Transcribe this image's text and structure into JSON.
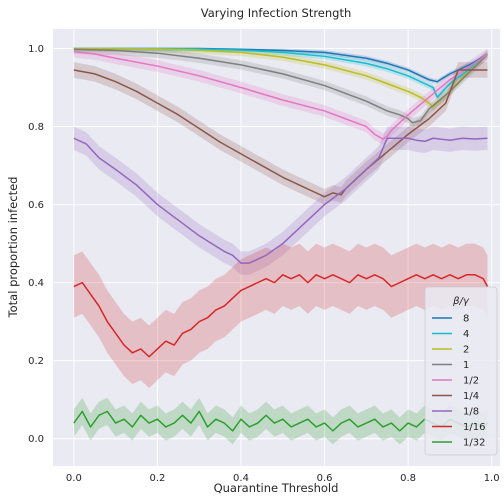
{
  "chart_data": {
    "type": "line",
    "title": "Varying Infection Strength",
    "xlabel": "Quarantine Threshold",
    "ylabel": "Total proportion infected",
    "xlim": [
      -0.05,
      1.02
    ],
    "ylim": [
      -0.07,
      1.05
    ],
    "xticks": [
      "0.0",
      "0.2",
      "0.4",
      "0.6",
      "0.8",
      "1.0"
    ],
    "yticks": [
      "0.0",
      "0.2",
      "0.4",
      "0.6",
      "0.8",
      "1.0"
    ],
    "grid": true,
    "legend": {
      "title": "β/γ",
      "placement": "bottom-right"
    },
    "series": [
      {
        "name": "8",
        "color": "#1f77b4",
        "points": [
          [
            0,
            1.0
          ],
          [
            0.1,
            1.0
          ],
          [
            0.2,
            1.0
          ],
          [
            0.3,
            1.0
          ],
          [
            0.4,
            0.998
          ],
          [
            0.5,
            0.995
          ],
          [
            0.6,
            0.99
          ],
          [
            0.7,
            0.975
          ],
          [
            0.75,
            0.962
          ],
          [
            0.8,
            0.945
          ],
          [
            0.83,
            0.93
          ],
          [
            0.85,
            0.92
          ],
          [
            0.87,
            0.915
          ],
          [
            0.88,
            0.922
          ],
          [
            0.9,
            0.935
          ],
          [
            0.95,
            0.96
          ],
          [
            0.99,
            0.985
          ]
        ],
        "band": 0.006
      },
      {
        "name": "4",
        "color": "#17becf",
        "points": [
          [
            0,
            1.0
          ],
          [
            0.1,
            1.0
          ],
          [
            0.2,
            1.0
          ],
          [
            0.3,
            0.999
          ],
          [
            0.4,
            0.996
          ],
          [
            0.5,
            0.99
          ],
          [
            0.6,
            0.98
          ],
          [
            0.7,
            0.962
          ],
          [
            0.75,
            0.948
          ],
          [
            0.8,
            0.93
          ],
          [
            0.84,
            0.91
          ],
          [
            0.86,
            0.9
          ],
          [
            0.87,
            0.875
          ],
          [
            0.9,
            0.91
          ],
          [
            0.95,
            0.95
          ],
          [
            0.99,
            0.985
          ]
        ],
        "band": 0.008
      },
      {
        "name": "2",
        "color": "#bcbd22",
        "points": [
          [
            0,
            1.0
          ],
          [
            0.1,
            1.0
          ],
          [
            0.2,
            0.999
          ],
          [
            0.3,
            0.996
          ],
          [
            0.4,
            0.99
          ],
          [
            0.5,
            0.978
          ],
          [
            0.6,
            0.958
          ],
          [
            0.7,
            0.93
          ],
          [
            0.75,
            0.91
          ],
          [
            0.8,
            0.89
          ],
          [
            0.83,
            0.875
          ],
          [
            0.85,
            0.86
          ],
          [
            0.86,
            0.85
          ],
          [
            0.89,
            0.88
          ],
          [
            0.93,
            0.925
          ],
          [
            0.99,
            0.985
          ]
        ],
        "band": 0.01
      },
      {
        "name": "1",
        "color": "#7f7f7f",
        "points": [
          [
            0,
            0.998
          ],
          [
            0.1,
            0.995
          ],
          [
            0.2,
            0.988
          ],
          [
            0.3,
            0.975
          ],
          [
            0.4,
            0.958
          ],
          [
            0.5,
            0.935
          ],
          [
            0.6,
            0.905
          ],
          [
            0.7,
            0.865
          ],
          [
            0.75,
            0.84
          ],
          [
            0.78,
            0.83
          ],
          [
            0.8,
            0.82
          ],
          [
            0.81,
            0.81
          ],
          [
            0.83,
            0.815
          ],
          [
            0.85,
            0.845
          ],
          [
            0.9,
            0.89
          ],
          [
            0.99,
            0.985
          ]
        ],
        "band": 0.012
      },
      {
        "name": "1/2",
        "color": "#e377c2",
        "points": [
          [
            0,
            0.992
          ],
          [
            0.05,
            0.986
          ],
          [
            0.1,
            0.975
          ],
          [
            0.2,
            0.955
          ],
          [
            0.3,
            0.93
          ],
          [
            0.4,
            0.9
          ],
          [
            0.5,
            0.868
          ],
          [
            0.6,
            0.84
          ],
          [
            0.65,
            0.82
          ],
          [
            0.7,
            0.8
          ],
          [
            0.72,
            0.78
          ],
          [
            0.74,
            0.768
          ],
          [
            0.75,
            0.775
          ],
          [
            0.76,
            0.79
          ],
          [
            0.8,
            0.83
          ],
          [
            0.85,
            0.875
          ],
          [
            0.9,
            0.92
          ],
          [
            0.99,
            0.985
          ]
        ],
        "band": 0.015
      },
      {
        "name": "1/4",
        "color": "#8c564b",
        "points": [
          [
            0,
            0.945
          ],
          [
            0.05,
            0.935
          ],
          [
            0.1,
            0.915
          ],
          [
            0.15,
            0.89
          ],
          [
            0.2,
            0.86
          ],
          [
            0.25,
            0.83
          ],
          [
            0.3,
            0.795
          ],
          [
            0.35,
            0.76
          ],
          [
            0.4,
            0.73
          ],
          [
            0.45,
            0.7
          ],
          [
            0.5,
            0.67
          ],
          [
            0.55,
            0.645
          ],
          [
            0.58,
            0.63
          ],
          [
            0.6,
            0.62
          ],
          [
            0.62,
            0.63
          ],
          [
            0.64,
            0.625
          ],
          [
            0.65,
            0.64
          ],
          [
            0.7,
            0.69
          ],
          [
            0.75,
            0.735
          ],
          [
            0.8,
            0.78
          ],
          [
            0.85,
            0.82
          ],
          [
            0.89,
            0.86
          ],
          [
            0.92,
            0.945
          ],
          [
            0.99,
            0.945
          ]
        ],
        "band": 0.02
      },
      {
        "name": "1/8",
        "color": "#9467bd",
        "points": [
          [
            0,
            0.77
          ],
          [
            0.03,
            0.755
          ],
          [
            0.06,
            0.72
          ],
          [
            0.1,
            0.69
          ],
          [
            0.15,
            0.65
          ],
          [
            0.2,
            0.6
          ],
          [
            0.25,
            0.56
          ],
          [
            0.3,
            0.52
          ],
          [
            0.33,
            0.5
          ],
          [
            0.36,
            0.48
          ],
          [
            0.38,
            0.47
          ],
          [
            0.4,
            0.45
          ],
          [
            0.42,
            0.45
          ],
          [
            0.44,
            0.46
          ],
          [
            0.46,
            0.47
          ],
          [
            0.5,
            0.5
          ],
          [
            0.55,
            0.55
          ],
          [
            0.6,
            0.6
          ],
          [
            0.65,
            0.64
          ],
          [
            0.7,
            0.69
          ],
          [
            0.73,
            0.72
          ],
          [
            0.75,
            0.77
          ],
          [
            0.78,
            0.77
          ],
          [
            0.8,
            0.77
          ],
          [
            0.82,
            0.765
          ],
          [
            0.84,
            0.762
          ],
          [
            0.86,
            0.77
          ],
          [
            0.9,
            0.765
          ],
          [
            0.93,
            0.77
          ],
          [
            0.96,
            0.768
          ],
          [
            0.99,
            0.77
          ]
        ],
        "band": 0.03
      },
      {
        "name": "1/16",
        "color": "#d62728",
        "points": [
          [
            0,
            0.39
          ],
          [
            0.02,
            0.4
          ],
          [
            0.04,
            0.37
          ],
          [
            0.06,
            0.34
          ],
          [
            0.08,
            0.3
          ],
          [
            0.1,
            0.27
          ],
          [
            0.12,
            0.24
          ],
          [
            0.14,
            0.22
          ],
          [
            0.16,
            0.23
          ],
          [
            0.18,
            0.21
          ],
          [
            0.2,
            0.23
          ],
          [
            0.22,
            0.25
          ],
          [
            0.24,
            0.24
          ],
          [
            0.26,
            0.27
          ],
          [
            0.28,
            0.28
          ],
          [
            0.3,
            0.3
          ],
          [
            0.32,
            0.31
          ],
          [
            0.34,
            0.33
          ],
          [
            0.36,
            0.34
          ],
          [
            0.38,
            0.36
          ],
          [
            0.4,
            0.38
          ],
          [
            0.42,
            0.39
          ],
          [
            0.44,
            0.4
          ],
          [
            0.46,
            0.41
          ],
          [
            0.48,
            0.4
          ],
          [
            0.5,
            0.42
          ],
          [
            0.52,
            0.41
          ],
          [
            0.54,
            0.42
          ],
          [
            0.56,
            0.4
          ],
          [
            0.58,
            0.42
          ],
          [
            0.6,
            0.41
          ],
          [
            0.62,
            0.42
          ],
          [
            0.64,
            0.41
          ],
          [
            0.66,
            0.4
          ],
          [
            0.68,
            0.42
          ],
          [
            0.7,
            0.41
          ],
          [
            0.72,
            0.42
          ],
          [
            0.74,
            0.41
          ],
          [
            0.76,
            0.39
          ],
          [
            0.78,
            0.4
          ],
          [
            0.8,
            0.41
          ],
          [
            0.82,
            0.42
          ],
          [
            0.84,
            0.41
          ],
          [
            0.86,
            0.42
          ],
          [
            0.88,
            0.41
          ],
          [
            0.9,
            0.42
          ],
          [
            0.92,
            0.41
          ],
          [
            0.94,
            0.42
          ],
          [
            0.96,
            0.42
          ],
          [
            0.98,
            0.41
          ],
          [
            0.99,
            0.39
          ]
        ],
        "band": 0.08
      },
      {
        "name": "1/32",
        "color": "#2ca02c",
        "points": [
          [
            0,
            0.04
          ],
          [
            0.02,
            0.07
          ],
          [
            0.04,
            0.03
          ],
          [
            0.06,
            0.06
          ],
          [
            0.08,
            0.07
          ],
          [
            0.1,
            0.04
          ],
          [
            0.12,
            0.05
          ],
          [
            0.14,
            0.03
          ],
          [
            0.16,
            0.06
          ],
          [
            0.18,
            0.04
          ],
          [
            0.2,
            0.05
          ],
          [
            0.22,
            0.03
          ],
          [
            0.24,
            0.04
          ],
          [
            0.26,
            0.06
          ],
          [
            0.28,
            0.04
          ],
          [
            0.3,
            0.07
          ],
          [
            0.32,
            0.03
          ],
          [
            0.34,
            0.05
          ],
          [
            0.36,
            0.04
          ],
          [
            0.38,
            0.02
          ],
          [
            0.4,
            0.05
          ],
          [
            0.42,
            0.03
          ],
          [
            0.44,
            0.04
          ],
          [
            0.46,
            0.06
          ],
          [
            0.48,
            0.04
          ],
          [
            0.5,
            0.05
          ],
          [
            0.52,
            0.03
          ],
          [
            0.54,
            0.04
          ],
          [
            0.56,
            0.05
          ],
          [
            0.58,
            0.03
          ],
          [
            0.6,
            0.04
          ],
          [
            0.62,
            0.02
          ],
          [
            0.64,
            0.04
          ],
          [
            0.66,
            0.05
          ],
          [
            0.68,
            0.03
          ],
          [
            0.7,
            0.04
          ],
          [
            0.72,
            0.05
          ],
          [
            0.74,
            0.03
          ],
          [
            0.76,
            0.04
          ],
          [
            0.78,
            0.02
          ],
          [
            0.8,
            0.04
          ],
          [
            0.82,
            0.03
          ],
          [
            0.84,
            0.05
          ],
          [
            0.86,
            0.04
          ],
          [
            0.88,
            0.03
          ],
          [
            0.9,
            0.05
          ],
          [
            0.92,
            0.04
          ],
          [
            0.94,
            0.03
          ],
          [
            0.96,
            0.04
          ],
          [
            0.98,
            0.03
          ],
          [
            0.99,
            0.04
          ]
        ],
        "band": 0.035
      }
    ]
  }
}
